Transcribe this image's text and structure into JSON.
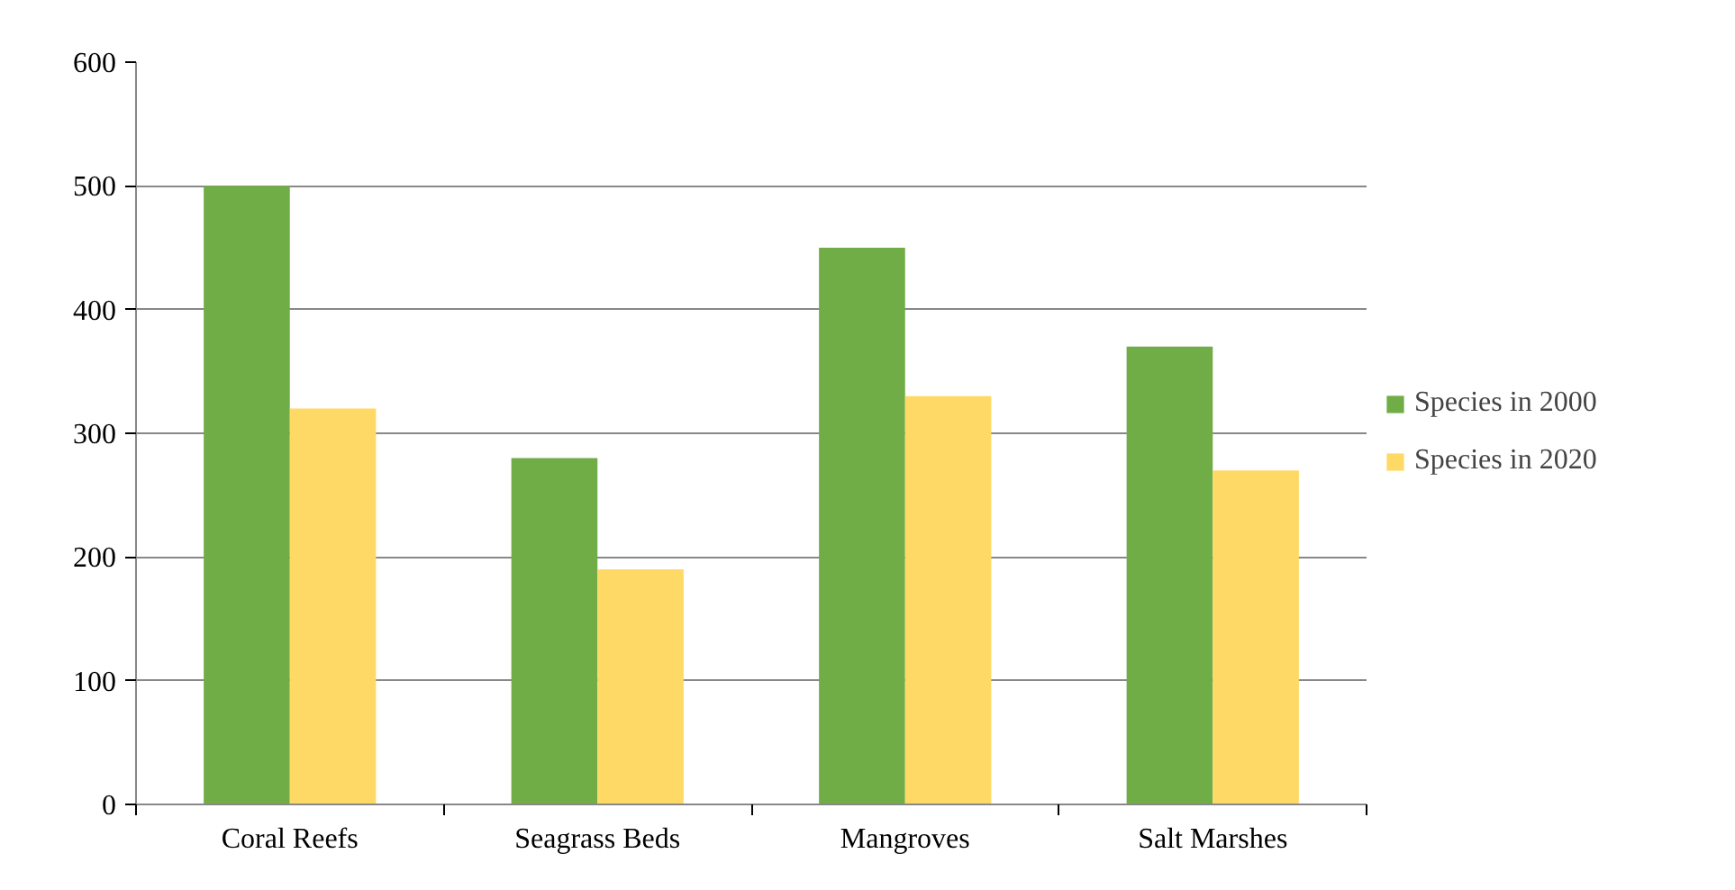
{
  "chart_data": {
    "type": "bar",
    "categories": [
      "Coral Reefs",
      "Seagrass Beds",
      "Mangroves",
      "Salt Marshes"
    ],
    "series": [
      {
        "name": "Species in 2000",
        "color": "#70ad47",
        "values": [
          500,
          280,
          450,
          370
        ]
      },
      {
        "name": "Species in 2020",
        "color": "#ffd966",
        "values": [
          320,
          190,
          330,
          270
        ]
      }
    ],
    "ylim": [
      0,
      600
    ],
    "yticks": [
      0,
      100,
      200,
      300,
      400,
      500,
      600
    ],
    "grid": "y",
    "legend": "right"
  }
}
